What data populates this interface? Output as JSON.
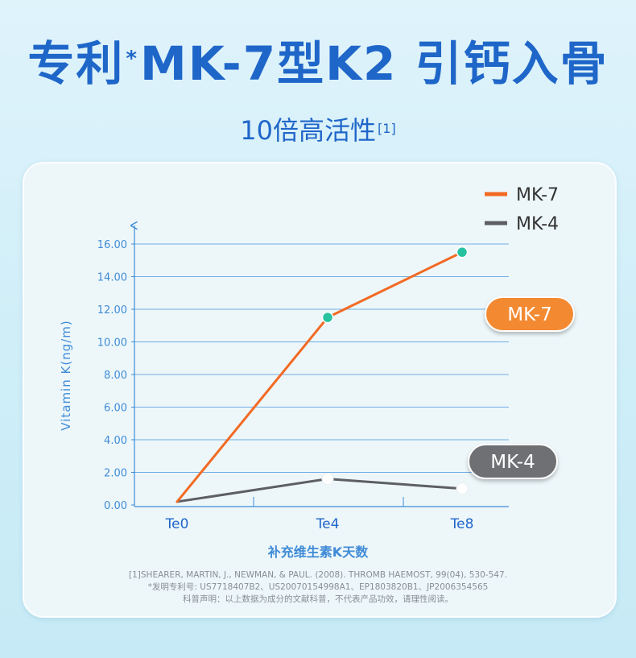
{
  "header": {
    "title_part1": "专利",
    "title_mark": "*",
    "title_part2": "MK-7型K2 引钙入骨",
    "subtitle": "10倍高活性",
    "subtitle_ref": "[1]"
  },
  "chart_data": {
    "type": "line",
    "xlabel": "补充维生素K天数",
    "ylabel": "Vitamin K(ng/m)",
    "categories": [
      "Te0",
      "Te4",
      "Te8"
    ],
    "yticks": [
      "0.00",
      "2.00",
      "4.00",
      "6.00",
      "8.00",
      "10.00",
      "12.00",
      "14.00",
      "16.00"
    ],
    "ylim": [
      0,
      16
    ],
    "grid": true,
    "legend_position": "top-right",
    "series": [
      {
        "name": "MK-7",
        "values": [
          0.2,
          11.5,
          15.5
        ],
        "color": "#f26a23",
        "badge": "MK-7",
        "badge_color": "#f38a33",
        "marker_color": "#27c2a0"
      },
      {
        "name": "MK-4",
        "values": [
          0.2,
          1.6,
          1.0
        ],
        "color": "#5d5f62",
        "badge": "MK-4",
        "badge_color": "#6e7073",
        "marker_color": "#ffffff"
      }
    ]
  },
  "footnotes": {
    "line1": "[1]SHEARER, MARTIN, J., NEWMAN, & PAUL. (2008). THROMB HAEMOST, 99(04), 530-547.",
    "line2": "*发明专利号: US7718407B2、US20070154998A1、EP1803820B1、JP2006354565",
    "line3": "科普声明：以上数据为成分的文献科普，不代表产品功效，请理性阅读。"
  },
  "colors": {
    "brand": "#1f66c9",
    "axis": "#3f8bd6",
    "grid": "#5aa0e0"
  }
}
